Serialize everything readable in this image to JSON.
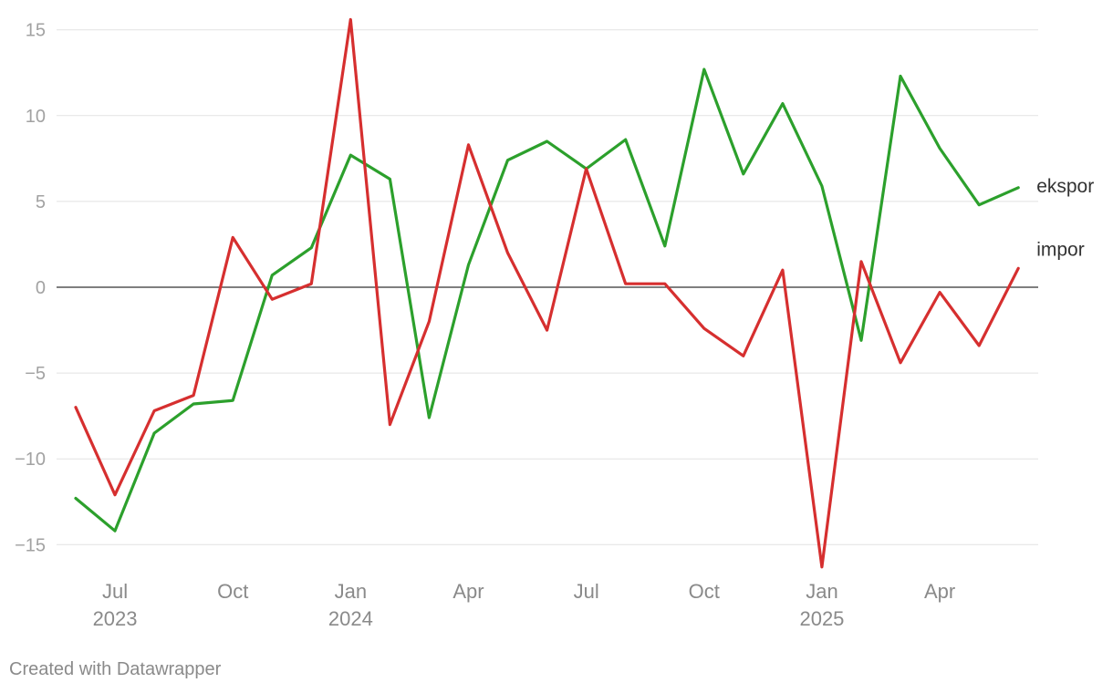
{
  "chart_data": {
    "type": "line",
    "x": [
      "2023-06",
      "2023-07",
      "2023-08",
      "2023-09",
      "2023-10",
      "2023-11",
      "2023-12",
      "2024-01",
      "2024-02",
      "2024-03",
      "2024-04",
      "2024-05",
      "2024-06",
      "2024-07",
      "2024-08",
      "2024-09",
      "2024-10",
      "2024-11",
      "2024-12",
      "2025-01",
      "2025-02",
      "2025-03",
      "2025-04",
      "2025-05",
      "2025-06"
    ],
    "series": [
      {
        "name": "ekspor",
        "color": "#2ca02c",
        "values": [
          -12.3,
          -14.2,
          -8.5,
          -6.8,
          -6.6,
          0.7,
          2.3,
          7.7,
          6.3,
          -7.6,
          1.3,
          7.4,
          8.5,
          6.9,
          8.6,
          2.4,
          12.7,
          6.6,
          10.7,
          5.9,
          -3.1,
          12.3,
          8.1,
          4.8,
          5.8
        ]
      },
      {
        "name": "impor",
        "color": "#d62f2f",
        "values": [
          -7.0,
          -12.1,
          -7.2,
          -6.3,
          2.9,
          -0.7,
          0.2,
          15.6,
          -8.0,
          -2.0,
          8.3,
          2.0,
          -2.5,
          6.9,
          0.2,
          0.2,
          -2.4,
          -4.0,
          1.0,
          -16.3,
          1.5,
          -4.4,
          -0.3,
          -3.4,
          1.1
        ]
      }
    ],
    "y_ticks": [
      15,
      10,
      5,
      0,
      -5,
      -10,
      -15
    ],
    "y_tick_labels": [
      "15",
      "10",
      "5",
      "0",
      "−5",
      "−10",
      "−15"
    ],
    "ylim": [
      -16.3,
      15.6
    ],
    "x_ticks": [
      {
        "month": "2023-07",
        "label": "Jul",
        "year": "2023"
      },
      {
        "month": "2023-10",
        "label": "Oct",
        "year": ""
      },
      {
        "month": "2024-01",
        "label": "Jan",
        "year": "2024"
      },
      {
        "month": "2024-04",
        "label": "Apr",
        "year": ""
      },
      {
        "month": "2024-07",
        "label": "Jul",
        "year": ""
      },
      {
        "month": "2024-10",
        "label": "Oct",
        "year": ""
      },
      {
        "month": "2025-01",
        "label": "Jan",
        "year": "2025"
      },
      {
        "month": "2025-04",
        "label": "Apr",
        "year": ""
      }
    ],
    "grid": true,
    "legend": "direct labels at line ends (right)"
  },
  "footer": {
    "credit": "Created with Datawrapper"
  }
}
